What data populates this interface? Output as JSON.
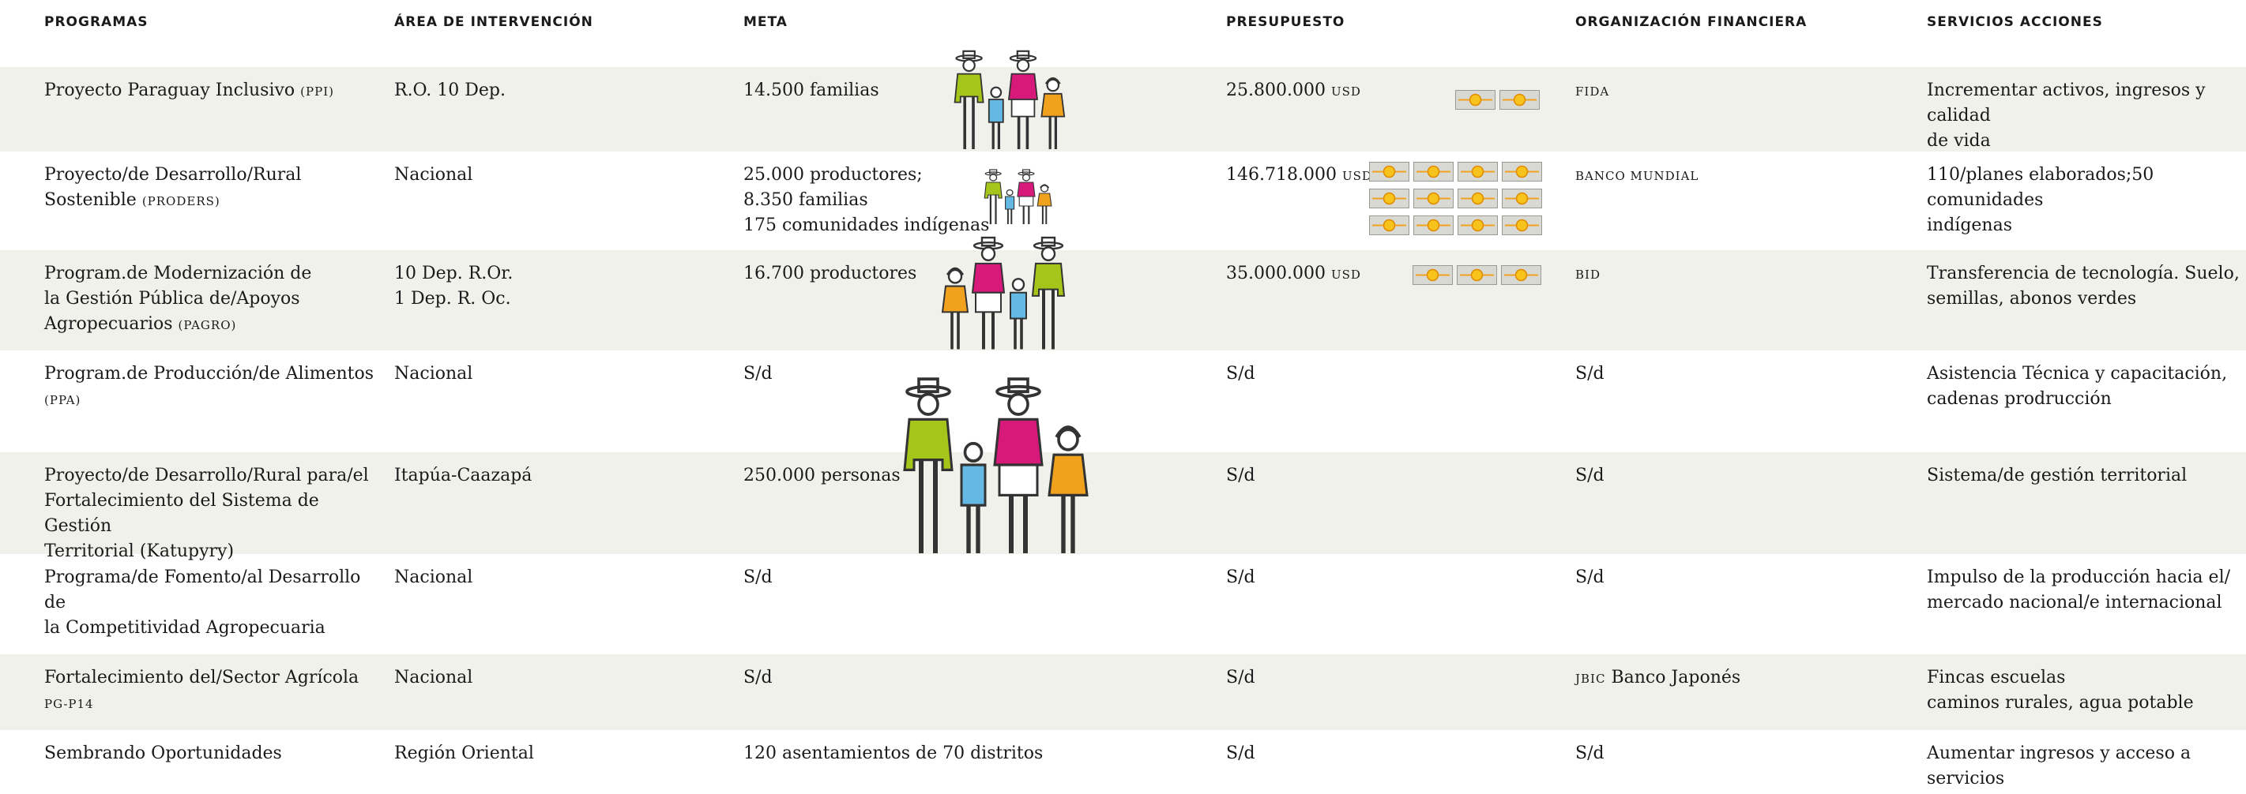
{
  "table": {
    "headers": [
      "PROGRAMAS",
      "ÁREA DE INTERVENCIÓN",
      "META",
      "PRESUPUESTO",
      "ORGANIZACIÓN FINANCIERA",
      "SERVICIOS ACCIONES"
    ],
    "rows": [
      {
        "programa": [
          "Proyecto Paraguay Inclusivo"
        ],
        "sigla": "(PPI)",
        "area": [
          "R.O. 10 Dep."
        ],
        "meta": [
          "14.500 familias"
        ],
        "presupuesto": "25.800.000",
        "unidad": "USD",
        "organizacion_sigla": "FIDA",
        "servicios": [
          "Incrementar activos, ingresos y calidad",
          "de vida"
        ]
      },
      {
        "programa": [
          "Proyecto/de Desarrollo/Rural",
          "Sostenible"
        ],
        "sigla": "(PRODERS)",
        "area": [
          "Nacional"
        ],
        "meta": [
          "25.000 productores;",
          "8.350 familias",
          "175 comunidades indígenas"
        ],
        "presupuesto": "146.718.000",
        "unidad": "USD",
        "organizacion_sigla": "BANCO MUNDIAL",
        "servicios": [
          "110/planes elaborados;50 comunidades",
          "indígenas"
        ]
      },
      {
        "programa": [
          "Program.de Modernización de",
          "la Gestión Pública de/Apoyos",
          "Agropecuarios"
        ],
        "sigla": "(PAGRO)",
        "area": [
          "10 Dep. R.Or.",
          "1 Dep. R. Oc."
        ],
        "meta": [
          "16.700 productores"
        ],
        "presupuesto": "35.000.000",
        "unidad": "USD",
        "organizacion_sigla": "BID",
        "servicios": [
          "Transferencia de tecnología. Suelo,",
          "semillas, abonos verdes"
        ]
      },
      {
        "programa": [
          "Program.de Producción/de Alimentos"
        ],
        "sigla": "(PPA)",
        "area": [
          "Nacional"
        ],
        "meta": [
          "S/d"
        ],
        "presupuesto": "S/d",
        "organizacion": "S/d",
        "servicios": [
          "Asistencia Técnica y capacitación,",
          "cadenas prodrucción"
        ]
      },
      {
        "programa": [
          "Proyecto/de Desarrollo/Rural para/el",
          "Fortalecimiento del Sistema de Gestión",
          "Territorial (Katupyry)"
        ],
        "area": [
          "Itapúa-Caazapá"
        ],
        "meta": [
          "250.000 personas"
        ],
        "presupuesto": "S/d",
        "organizacion": "S/d",
        "servicios": [
          "Sistema/de gestión territorial"
        ]
      },
      {
        "programa": [
          "Programa/de Fomento/al Desarrollo de",
          "la Competitividad Agropecuaria"
        ],
        "area": [
          "Nacional"
        ],
        "meta": [
          "S/d"
        ],
        "presupuesto": "S/d",
        "organizacion": "S/d",
        "servicios": [
          "Impulso de la producción hacia el/",
          "mercado nacional/e internacional"
        ]
      },
      {
        "programa": [
          "Fortalecimiento del/Sector Agrícola"
        ],
        "sigla": "PG-P14",
        "area": [
          "Nacional"
        ],
        "meta": [
          "S/d"
        ],
        "presupuesto": "S/d",
        "organizacion_sigla": "JBIC",
        "organizacion": "Banco Japonés",
        "servicios": [
          "Fincas escuelas",
          "caminos rurales, agua potable"
        ]
      },
      {
        "programa": [
          "Sembrando Oportunidades"
        ],
        "area": [
          "Región Oriental"
        ],
        "meta": [
          "120 asentamientos de 70 distritos"
        ],
        "presupuesto": "S/d",
        "organizacion": "S/d",
        "servicios": [
          "Aumentar ingresos y acceso a servicios"
        ]
      }
    ]
  }
}
